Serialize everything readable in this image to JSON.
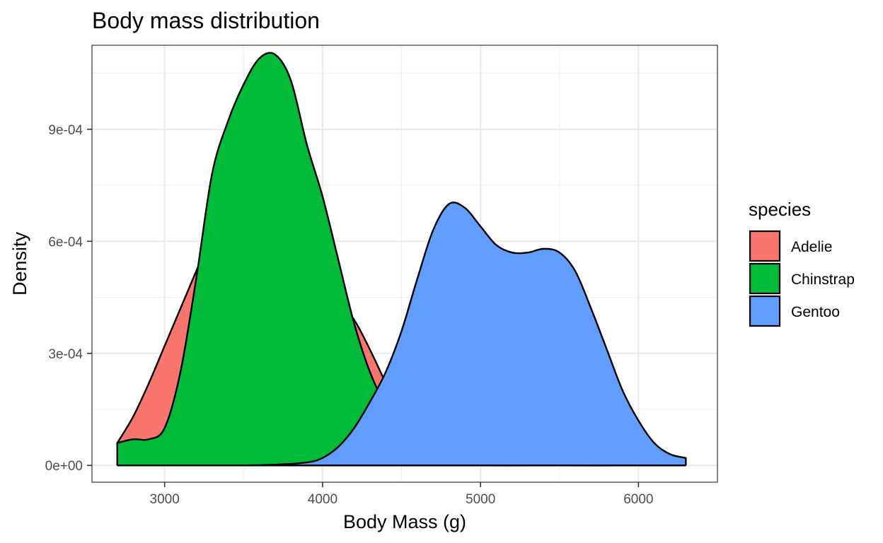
{
  "chart_data": {
    "type": "area",
    "title": "Body mass distribution",
    "xlabel": "Body Mass (g)",
    "ylabel": "Density",
    "xlim": [
      2540,
      6500
    ],
    "ylim": [
      -4.5e-05,
      0.001125
    ],
    "x_ticks": [
      3000,
      4000,
      5000,
      6000
    ],
    "x_tick_labels": [
      "3000",
      "4000",
      "5000",
      "6000"
    ],
    "y_ticks": [
      0,
      0.0003,
      0.0006,
      0.0009
    ],
    "y_tick_labels": [
      "0e+00",
      "3e-04",
      "6e-04",
      "9e-04"
    ],
    "grid": true,
    "legend": {
      "title": "species",
      "position": "right"
    },
    "series": [
      {
        "name": "Adelie",
        "color": "#F8766D",
        "points": [
          [
            2700,
            6e-05
          ],
          [
            2800,
            0.00013
          ],
          [
            2900,
            0.00022
          ],
          [
            3000,
            0.00032
          ],
          [
            3100,
            0.00042
          ],
          [
            3200,
            0.00052
          ],
          [
            3300,
            0.00062
          ],
          [
            3400,
            0.00069
          ],
          [
            3500,
            0.00071
          ],
          [
            3600,
            0.00069
          ],
          [
            3700,
            0.00064
          ],
          [
            3800,
            0.00058
          ],
          [
            3900,
            0.00052
          ],
          [
            4000,
            0.00047
          ],
          [
            4100,
            0.00044
          ],
          [
            4200,
            0.00039
          ],
          [
            4300,
            0.00031
          ],
          [
            4400,
            0.00022
          ],
          [
            4500,
            0.00013
          ],
          [
            4600,
            6e-05
          ],
          [
            4700,
            2e-05
          ],
          [
            4800,
            5e-06
          ],
          [
            5000,
            0
          ],
          [
            5500,
            0
          ],
          [
            6000,
            0
          ],
          [
            6300,
            0
          ]
        ]
      },
      {
        "name": "Chinstrap",
        "color": "#00BA38",
        "points": [
          [
            2700,
            6e-05
          ],
          [
            2800,
            7e-05
          ],
          [
            2900,
            7e-05
          ],
          [
            3000,
            0.0001
          ],
          [
            3100,
            0.00025
          ],
          [
            3200,
            0.0005
          ],
          [
            3300,
            0.00078
          ],
          [
            3400,
            0.00092
          ],
          [
            3500,
            0.00102
          ],
          [
            3600,
            0.00109
          ],
          [
            3700,
            0.0011
          ],
          [
            3800,
            0.00103
          ],
          [
            3900,
            0.00086
          ],
          [
            4000,
            0.00072
          ],
          [
            4100,
            0.00055
          ],
          [
            4200,
            0.00038
          ],
          [
            4300,
            0.00025
          ],
          [
            4400,
            0.00016
          ],
          [
            4500,
            0.0001
          ],
          [
            4600,
            7e-05
          ],
          [
            4700,
            4e-05
          ],
          [
            4800,
            2e-05
          ],
          [
            5000,
            5e-06
          ],
          [
            5500,
            0
          ],
          [
            6000,
            0
          ],
          [
            6300,
            0
          ]
        ]
      },
      {
        "name": "Gentoo",
        "color": "#619CFF",
        "points": [
          [
            2700,
            0
          ],
          [
            3000,
            0
          ],
          [
            3500,
            0
          ],
          [
            3700,
            2e-06
          ],
          [
            3900,
            8e-06
          ],
          [
            4000,
            2e-05
          ],
          [
            4100,
            5e-05
          ],
          [
            4200,
            0.0001
          ],
          [
            4300,
            0.00017
          ],
          [
            4400,
            0.00025
          ],
          [
            4500,
            0.00036
          ],
          [
            4600,
            0.0005
          ],
          [
            4700,
            0.00063
          ],
          [
            4800,
            0.0007
          ],
          [
            4900,
            0.00069
          ],
          [
            5000,
            0.00064
          ],
          [
            5100,
            0.00059
          ],
          [
            5200,
            0.00057
          ],
          [
            5300,
            0.00057
          ],
          [
            5400,
            0.00058
          ],
          [
            5500,
            0.00057
          ],
          [
            5600,
            0.00052
          ],
          [
            5700,
            0.00042
          ],
          [
            5800,
            0.00031
          ],
          [
            5900,
            0.0002
          ],
          [
            6000,
            0.00012
          ],
          [
            6100,
            6e-05
          ],
          [
            6200,
            3e-05
          ],
          [
            6300,
            2e-05
          ]
        ]
      }
    ]
  }
}
